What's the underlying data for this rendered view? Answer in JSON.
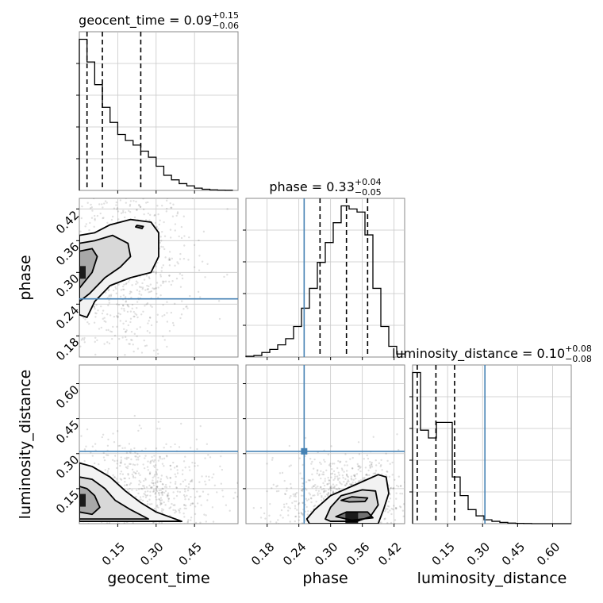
{
  "chart_data": {
    "type": "corner",
    "parameters": [
      "geocent_time",
      "phase",
      "luminosity_distance"
    ],
    "truth_color": "#4682b4",
    "truths": {
      "phase": 0.25,
      "luminosity_distance": 0.31
    },
    "titles": [
      {
        "parameter": "geocent_time",
        "prefix": "geocent_time = ",
        "median": "0.09",
        "plus": "+0.15",
        "minus": "−0.06"
      },
      {
        "parameter": "phase",
        "prefix": "phase = ",
        "median": "0.33",
        "plus": "+0.04",
        "minus": "−0.05"
      },
      {
        "parameter": "luminosity_distance",
        "prefix": "luminosity_distance = ",
        "median": "0.10",
        "plus": "+0.08",
        "minus": "−0.08"
      }
    ],
    "axes": {
      "geocent_time": {
        "range": [
          0.0,
          0.62
        ],
        "ticks": [
          0.15,
          0.3,
          0.45
        ],
        "tick_labels": [
          "0.15",
          "0.30",
          "0.45"
        ],
        "label": "geocent_time"
      },
      "phase": {
        "range": [
          0.14,
          0.44
        ],
        "ticks": [
          0.18,
          0.24,
          0.3,
          0.36,
          0.42
        ],
        "tick_labels": [
          "0.18",
          "0.24",
          "0.30",
          "0.36",
          "0.42"
        ],
        "label": "phase"
      },
      "luminosity_distance": {
        "range": [
          0.0,
          0.68
        ],
        "ticks": [
          0.15,
          0.3,
          0.45,
          0.6
        ],
        "tick_labels": [
          "0.15",
          "0.30",
          "0.45",
          "0.60"
        ],
        "label": "luminosity_distance"
      }
    },
    "histograms": {
      "geocent_time": {
        "bin_edges": [
          0.0,
          0.03,
          0.06,
          0.09,
          0.12,
          0.15,
          0.18,
          0.21,
          0.24,
          0.27,
          0.3,
          0.33,
          0.36,
          0.39,
          0.42,
          0.45,
          0.48,
          0.51,
          0.54,
          0.57,
          0.6
        ],
        "counts": [
          1.0,
          0.85,
          0.7,
          0.55,
          0.45,
          0.37,
          0.33,
          0.3,
          0.26,
          0.22,
          0.16,
          0.1,
          0.07,
          0.045,
          0.03,
          0.015,
          0.008,
          0.004,
          0.002,
          0.001
        ],
        "quantiles": [
          0.03,
          0.09,
          0.24
        ]
      },
      "phase": {
        "bin_edges": [
          0.14,
          0.155,
          0.17,
          0.185,
          0.2,
          0.215,
          0.23,
          0.245,
          0.26,
          0.275,
          0.29,
          0.305,
          0.32,
          0.335,
          0.35,
          0.365,
          0.38,
          0.395,
          0.41,
          0.425,
          0.44
        ],
        "counts": [
          0.005,
          0.01,
          0.03,
          0.05,
          0.08,
          0.12,
          0.2,
          0.32,
          0.45,
          0.62,
          0.75,
          0.88,
          0.99,
          0.97,
          0.95,
          0.8,
          0.45,
          0.2,
          0.07,
          0.02
        ],
        "quantiles": [
          0.28,
          0.33,
          0.37
        ]
      },
      "luminosity_distance": {
        "bin_edges": [
          0.0,
          0.034,
          0.068,
          0.102,
          0.136,
          0.17,
          0.204,
          0.238,
          0.272,
          0.306,
          0.34,
          0.374,
          0.408,
          0.442,
          0.476,
          0.51,
          0.544,
          0.578,
          0.612,
          0.646,
          0.68
        ],
        "counts": [
          0.97,
          0.6,
          0.55,
          0.65,
          0.65,
          0.3,
          0.18,
          0.09,
          0.05,
          0.025,
          0.015,
          0.008,
          0.004,
          0.002,
          0.001,
          0.0,
          0.0,
          0.0,
          0.0,
          0.0
        ],
        "quantiles": [
          0.02,
          0.1,
          0.18
        ]
      }
    },
    "joint_distributions": [
      {
        "x": "geocent_time",
        "y": "phase",
        "mode": [
          0.0,
          0.3
        ],
        "contours": [
          [
            [
              0.0,
              0.22
            ],
            [
              0.03,
              0.215
            ],
            [
              0.06,
              0.245
            ],
            [
              0.12,
              0.275
            ],
            [
              0.2,
              0.29
            ],
            [
              0.28,
              0.3
            ],
            [
              0.31,
              0.33
            ],
            [
              0.31,
              0.375
            ],
            [
              0.28,
              0.395
            ],
            [
              0.2,
              0.4
            ],
            [
              0.12,
              0.39
            ],
            [
              0.06,
              0.375
            ],
            [
              0.0,
              0.37
            ]
          ],
          [
            [
              0.0,
              0.245
            ],
            [
              0.04,
              0.26
            ],
            [
              0.1,
              0.29
            ],
            [
              0.16,
              0.31
            ],
            [
              0.2,
              0.33
            ],
            [
              0.19,
              0.355
            ],
            [
              0.13,
              0.37
            ],
            [
              0.06,
              0.36
            ],
            [
              0.0,
              0.355
            ]
          ],
          [
            [
              0.0,
              0.27
            ],
            [
              0.05,
              0.3
            ],
            [
              0.07,
              0.33
            ],
            [
              0.05,
              0.345
            ],
            [
              0.0,
              0.34
            ]
          ],
          [
            [
              0.22,
              0.386
            ],
            [
              0.245,
              0.383
            ],
            [
              0.25,
              0.387
            ],
            [
              0.225,
              0.389
            ]
          ]
        ]
      },
      {
        "x": "geocent_time",
        "y": "luminosity_distance",
        "mode": [
          0.0,
          0.1
        ],
        "contours": [
          [
            [
              0.0,
              0.26
            ],
            [
              0.05,
              0.245
            ],
            [
              0.12,
              0.2
            ],
            [
              0.18,
              0.14
            ],
            [
              0.24,
              0.09
            ],
            [
              0.3,
              0.05
            ],
            [
              0.4,
              0.01
            ],
            [
              0.0,
              0.01
            ]
          ],
          [
            [
              0.0,
              0.2
            ],
            [
              0.05,
              0.19
            ],
            [
              0.1,
              0.15
            ],
            [
              0.14,
              0.1
            ],
            [
              0.2,
              0.06
            ],
            [
              0.27,
              0.02
            ],
            [
              0.0,
              0.02
            ]
          ],
          [
            [
              0.0,
              0.16
            ],
            [
              0.03,
              0.15
            ],
            [
              0.06,
              0.12
            ],
            [
              0.08,
              0.07
            ],
            [
              0.05,
              0.04
            ],
            [
              0.0,
              0.05
            ]
          ]
        ]
      },
      {
        "x": "phase",
        "y": "luminosity_distance",
        "mode": [
          0.34,
          0.02
        ],
        "contours": [
          [
            [
              0.255,
              0.02
            ],
            [
              0.27,
              0.06
            ],
            [
              0.3,
              0.12
            ],
            [
              0.35,
              0.17
            ],
            [
              0.39,
              0.21
            ],
            [
              0.405,
              0.2
            ],
            [
              0.41,
              0.13
            ],
            [
              0.4,
              0.06
            ],
            [
              0.39,
              0.0
            ],
            [
              0.26,
              0.0
            ]
          ],
          [
            [
              0.29,
              0.02
            ],
            [
              0.3,
              0.07
            ],
            [
              0.32,
              0.12
            ],
            [
              0.36,
              0.145
            ],
            [
              0.385,
              0.14
            ],
            [
              0.39,
              0.08
            ],
            [
              0.375,
              0.03
            ],
            [
              0.35,
              0.01
            ],
            [
              0.3,
              0.01
            ]
          ],
          [
            [
              0.32,
              0.1
            ],
            [
              0.34,
              0.115
            ],
            [
              0.37,
              0.11
            ],
            [
              0.365,
              0.095
            ],
            [
              0.335,
              0.093
            ]
          ],
          [
            [
              0.31,
              0.03
            ],
            [
              0.33,
              0.05
            ],
            [
              0.37,
              0.05
            ],
            [
              0.38,
              0.025
            ],
            [
              0.34,
              0.015
            ]
          ]
        ]
      }
    ],
    "grid": true
  }
}
